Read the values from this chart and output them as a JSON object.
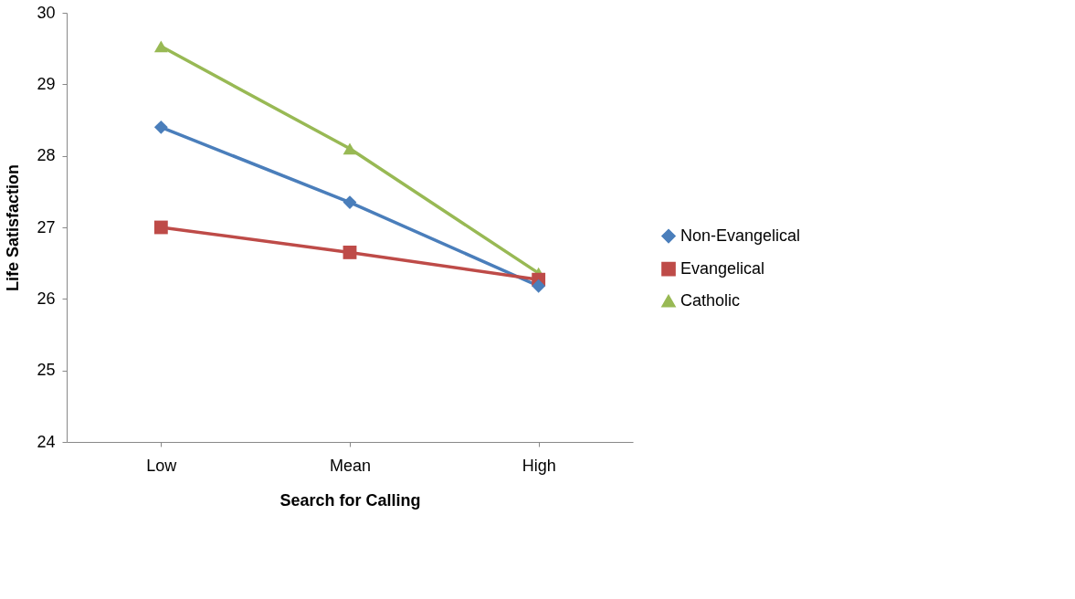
{
  "chart_data": {
    "type": "line",
    "xlabel": "Search for Calling",
    "ylabel": "Life Satisfaction",
    "categories": [
      "Low",
      "Mean",
      "High"
    ],
    "series": [
      {
        "name": "Non-Evangelical",
        "color": "#4a7ebb",
        "marker": "diamond",
        "values": [
          28.4,
          27.35,
          26.18
        ]
      },
      {
        "name": "Evangelical",
        "color": "#be4b48",
        "marker": "square",
        "values": [
          27.0,
          26.65,
          26.27
        ]
      },
      {
        "name": "Catholic",
        "color": "#98b954",
        "marker": "triangle",
        "values": [
          29.53,
          28.1,
          26.36
        ]
      }
    ],
    "ylim": [
      24,
      30
    ],
    "yticks": [
      24,
      25,
      26,
      27,
      28,
      29,
      30
    ],
    "grid": false,
    "legend": "right"
  }
}
